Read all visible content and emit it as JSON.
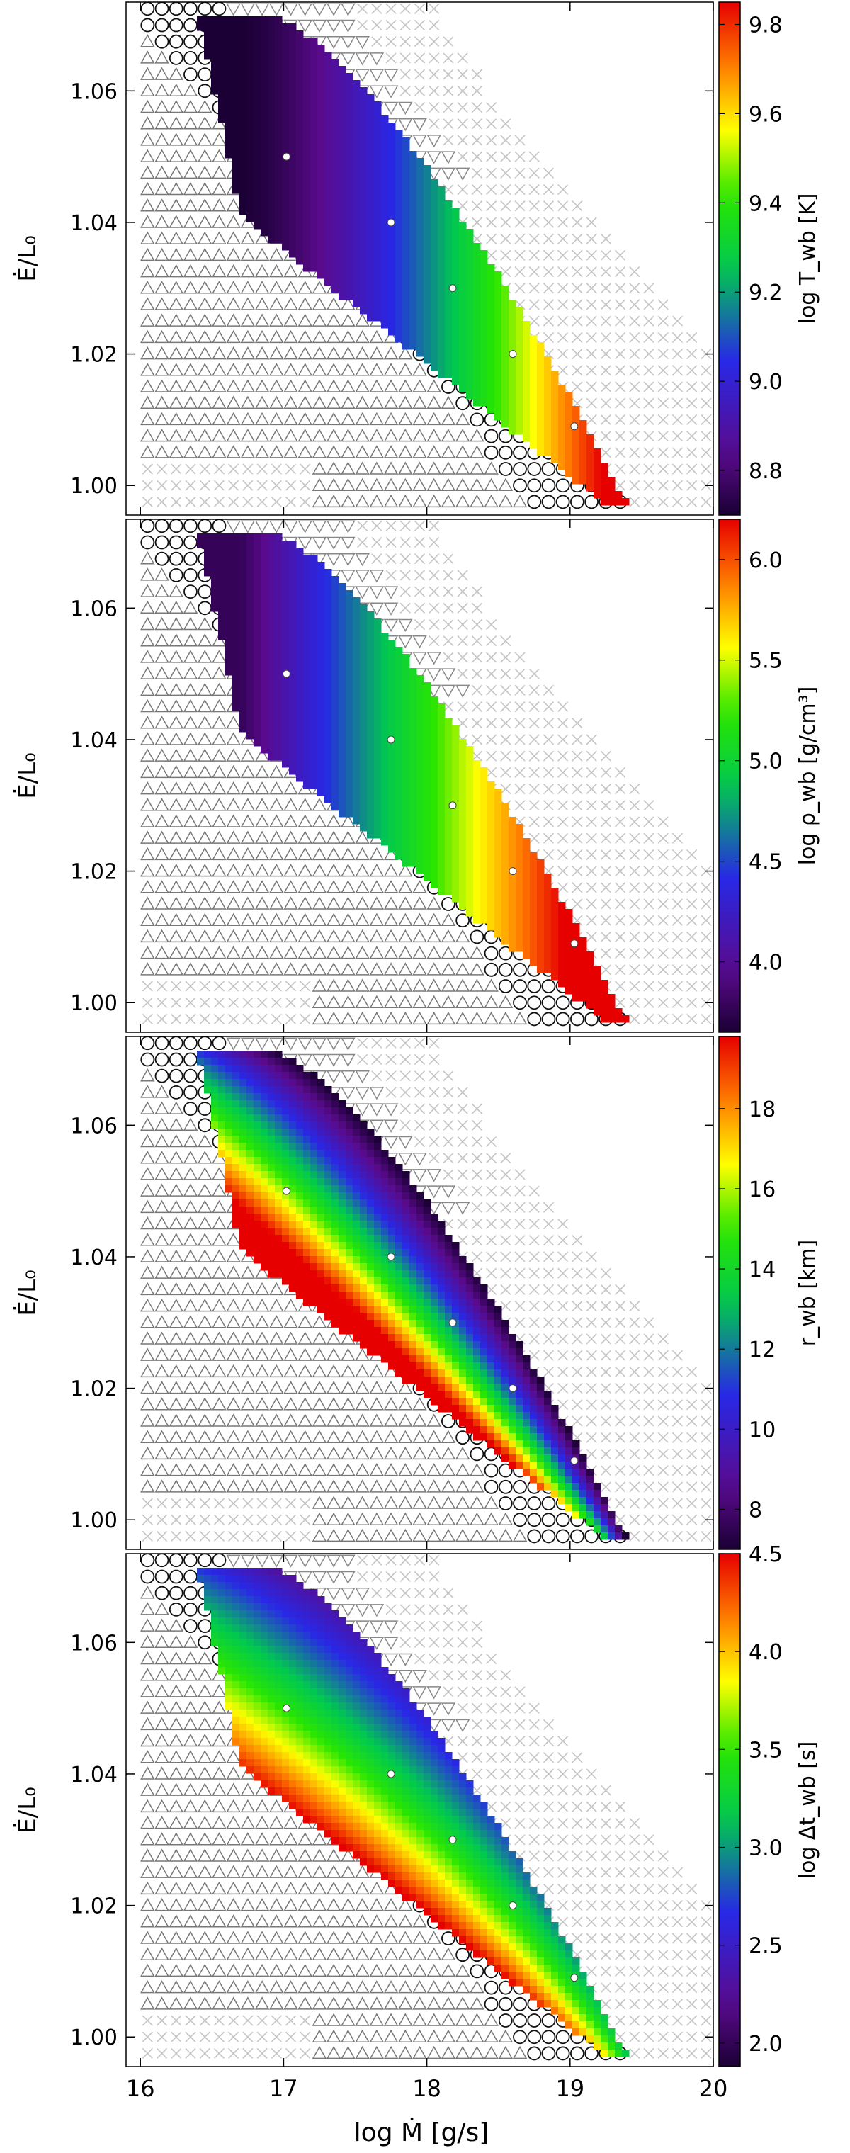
{
  "chart_data": {
    "type": "heatmap",
    "xlabel": "log Ṁ [g/s]",
    "ylabel": "Ė/L₀",
    "xlim": [
      15.9,
      20.0
    ],
    "ylim": [
      0.9955,
      1.0735
    ],
    "x_ticks": [
      "16",
      "17",
      "18",
      "19",
      "20"
    ],
    "x_tick_values": [
      16,
      17,
      18,
      19,
      20
    ],
    "y_ticks": [
      "1.00",
      "1.02",
      "1.04",
      "1.06"
    ],
    "y_tick_values": [
      1.0,
      1.02,
      1.04,
      1.06
    ],
    "marker_legend": {
      "up_triangle": "gray upward triangles",
      "down_triangle": "gray downward triangles",
      "circle": "black open circles",
      "cross": "light gray crosses"
    },
    "highlight_points": [
      {
        "x": 17.02,
        "y": 1.05
      },
      {
        "x": 17.75,
        "y": 1.04
      },
      {
        "x": 18.18,
        "y": 1.03
      },
      {
        "x": 18.6,
        "y": 1.02
      },
      {
        "x": 19.03,
        "y": 1.009
      }
    ],
    "panels": [
      {
        "colorbar_label": "log T_wb [K]",
        "colorbar_range": [
          8.7,
          9.85
        ],
        "colorbar_ticks": [
          "8.8",
          "9.0",
          "9.2",
          "9.4",
          "9.6",
          "9.8"
        ],
        "colorbar_tick_values": [
          8.8,
          9.0,
          9.2,
          9.4,
          9.6,
          9.8
        ],
        "colormap": "spectral",
        "field": "temperature"
      },
      {
        "colorbar_label": "log ρ_wb [g/cm³]",
        "colorbar_range": [
          3.65,
          6.2
        ],
        "colorbar_ticks": [
          "4.0",
          "4.5",
          "5.0",
          "5.5",
          "6.0"
        ],
        "colorbar_tick_values": [
          4.0,
          4.5,
          5.0,
          5.5,
          6.0
        ],
        "colormap": "spectral",
        "field": "density"
      },
      {
        "colorbar_label": "r_wb [km]",
        "colorbar_range": [
          7.0,
          19.8
        ],
        "colorbar_ticks": [
          "8",
          "10",
          "12",
          "14",
          "16",
          "18"
        ],
        "colorbar_tick_values": [
          8,
          10,
          12,
          14,
          16,
          18
        ],
        "colormap": "spectral",
        "field": "radius"
      },
      {
        "colorbar_label": "log Δt_wb [s]",
        "colorbar_range": [
          1.88,
          4.5
        ],
        "colorbar_ticks": [
          "2.0",
          "2.5",
          "3.0",
          "3.5",
          "4.0",
          "4.5"
        ],
        "colorbar_tick_values": [
          2.0,
          2.5,
          3.0,
          3.5,
          4.0,
          4.5
        ],
        "colormap": "spectral",
        "field": "time"
      }
    ]
  }
}
